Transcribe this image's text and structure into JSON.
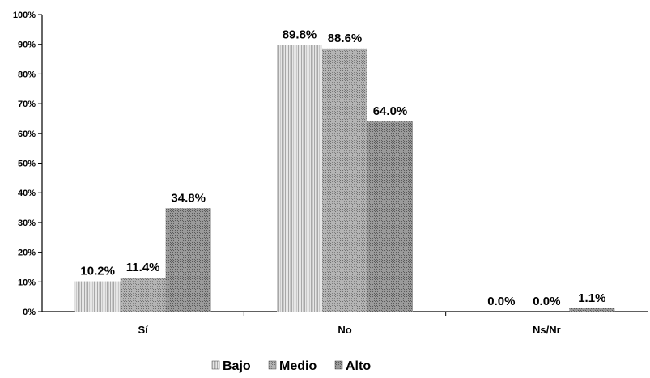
{
  "chart_data": {
    "type": "bar",
    "categories": [
      "Sí",
      "No",
      "Ns/Nr"
    ],
    "series": [
      {
        "name": "Bajo",
        "values": [
          10.2,
          89.8,
          0.0
        ]
      },
      {
        "name": "Medio",
        "values": [
          11.4,
          88.6,
          0.0
        ]
      },
      {
        "name": "Alto",
        "values": [
          34.8,
          64.0,
          1.1
        ]
      }
    ],
    "data_labels": [
      [
        "10.2%",
        "89.8%",
        "0.0%"
      ],
      [
        "11.4%",
        "88.6%",
        "0.0%"
      ],
      [
        "34.8%",
        "64.0%",
        "1.1%"
      ]
    ],
    "yticks": [
      "0%",
      "10%",
      "20%",
      "30%",
      "40%",
      "50%",
      "60%",
      "70%",
      "80%",
      "90%",
      "100%"
    ],
    "ylim": [
      0,
      100
    ],
    "title": "",
    "xlabel": "",
    "ylabel": "",
    "grid": false,
    "legend_position": "bottom",
    "colors": {
      "Bajo": "#d4d4d4",
      "Medio": "#a9a9a9",
      "Alto": "#8a8a8a",
      "axis": "#000000"
    }
  }
}
